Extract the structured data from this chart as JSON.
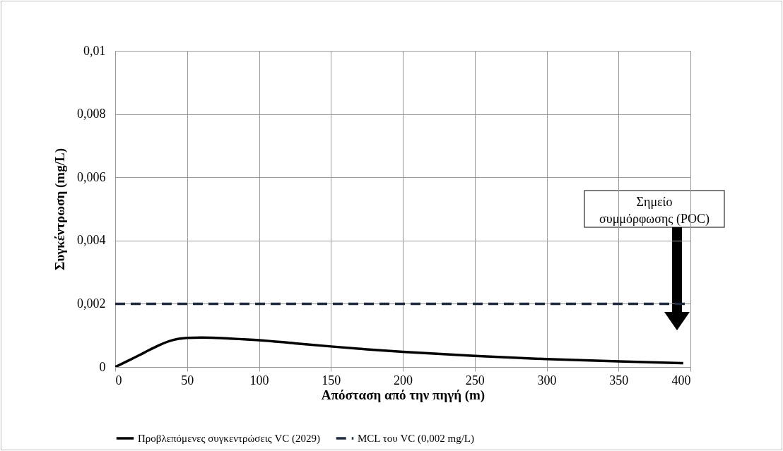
{
  "chart_data": {
    "type": "line",
    "xlabel": "Απόσταση από την πηγή (m)",
    "ylabel": "Συγκέντρωση (mg/L)",
    "xlim": [
      0,
      400
    ],
    "xticks": [
      0,
      50,
      100,
      150,
      200,
      250,
      300,
      350,
      400
    ],
    "ylim": [
      0,
      0.01
    ],
    "yticks": [
      {
        "value": 0,
        "label": "0"
      },
      {
        "value": 0.002,
        "label": "0,002"
      },
      {
        "value": 0.004,
        "label": "0,004"
      },
      {
        "value": 0.006,
        "label": "0,006"
      },
      {
        "value": 0.008,
        "label": "0,008"
      },
      {
        "value": 0.01,
        "label": "0,01"
      }
    ],
    "grid": true,
    "legend": "bottom",
    "series": [
      {
        "name": "Προβλεπόμενες συγκεντρώσεις VC (2029)",
        "color": "#000000",
        "line_style": "solid",
        "x": [
          0,
          10,
          20,
          30,
          40,
          50,
          60,
          70,
          80,
          100,
          125,
          150,
          175,
          200,
          250,
          300,
          350,
          395
        ],
        "values": [
          0,
          0.00022,
          0.00045,
          0.00068,
          0.00085,
          0.00092,
          0.00093,
          0.00092,
          0.0009,
          0.00085,
          0.00075,
          0.00065,
          0.00056,
          0.00048,
          0.00035,
          0.00025,
          0.00018,
          0.00012
        ]
      },
      {
        "name": "MCL του VC (0,002 mg/L)",
        "color": "#1c2b3f",
        "line_style": "dashed",
        "x": [
          0,
          400
        ],
        "values": [
          0.002,
          0.002
        ]
      }
    ],
    "annotations": [
      "Σημείο\nσυμμόρφωσης (POC)"
    ]
  }
}
